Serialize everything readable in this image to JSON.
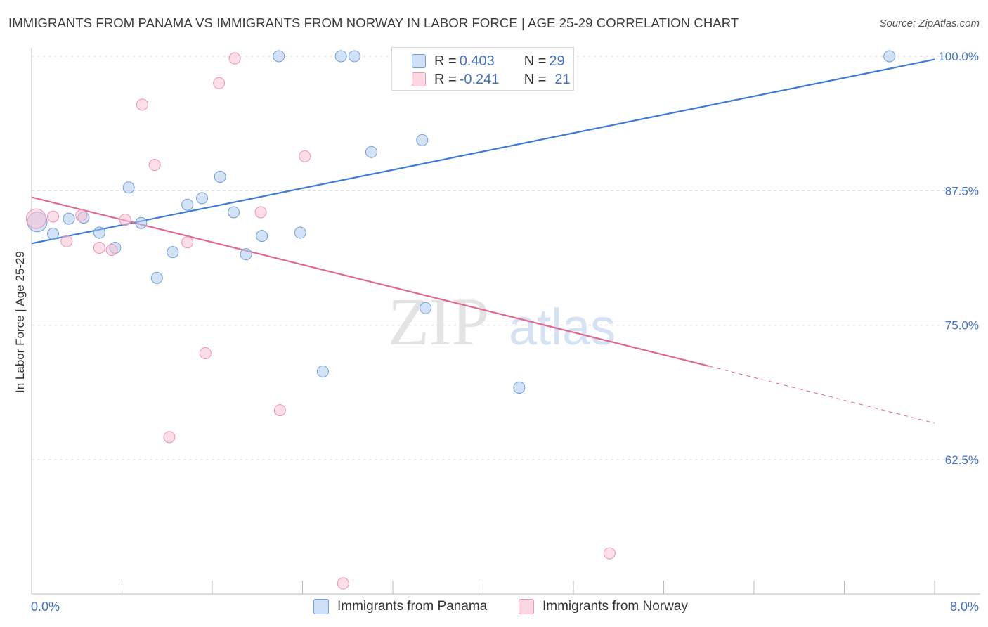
{
  "header": {
    "title": "IMMIGRANTS FROM PANAMA VS IMMIGRANTS FROM NORWAY IN LABOR FORCE | AGE 25-29 CORRELATION CHART",
    "source": "Source: ZipAtlas.com"
  },
  "colors": {
    "panama_fill": "#aecbf0",
    "panama_stroke": "#6f9fd8",
    "panama_line": "#3d7bd4",
    "norway_fill": "#f8c2d4",
    "norway_stroke": "#ee94b3",
    "norway_line": "#e06891",
    "tick_text": "#4472c4",
    "grid": "#d9d9d9"
  },
  "legend_top": {
    "rows": [
      {
        "r_label": "R = ",
        "r_value": "0.403",
        "n_label": "N = ",
        "n_value": "29",
        "swatch": "panama"
      },
      {
        "r_label": "R = ",
        "r_value": "-0.241",
        "n_label": "N = ",
        "n_value": "21",
        "swatch": "norway"
      }
    ]
  },
  "watermark": {
    "zip": "ZIP",
    "atlas": "atlas"
  },
  "chart_data": {
    "type": "scatter",
    "title": "IMMIGRANTS FROM PANAMA VS IMMIGRANTS FROM NORWAY IN LABOR FORCE | AGE 25-29 CORRELATION CHART",
    "xlabel": "",
    "ylabel": "In Labor Force | Age 25-29",
    "xlim": [
      0,
      8
    ],
    "ylim": [
      50,
      102
    ],
    "x_tick_labels": [
      "0.0%",
      "8.0%"
    ],
    "y_ticks": [
      62.5,
      75.0,
      87.5,
      100.0
    ],
    "y_tick_labels": [
      "62.5%",
      "75.0%",
      "87.5%",
      "100.0%"
    ],
    "grid": true,
    "legend_position": "bottom",
    "series": [
      {
        "name": "Immigrants from Panama",
        "R": 0.403,
        "N": 29,
        "trend": {
          "x": [
            0.0,
            8.0
          ],
          "y": [
            82.6,
            99.7
          ]
        },
        "points": [
          {
            "x": 0.05,
            "y": 84.6,
            "big": true
          },
          {
            "x": 0.19,
            "y": 83.5
          },
          {
            "x": 0.33,
            "y": 84.9
          },
          {
            "x": 0.46,
            "y": 85.0
          },
          {
            "x": 0.6,
            "y": 83.6
          },
          {
            "x": 0.74,
            "y": 82.2
          },
          {
            "x": 0.86,
            "y": 87.8
          },
          {
            "x": 0.97,
            "y": 84.5
          },
          {
            "x": 1.11,
            "y": 79.4
          },
          {
            "x": 1.25,
            "y": 81.8
          },
          {
            "x": 1.38,
            "y": 86.2
          },
          {
            "x": 1.51,
            "y": 86.8
          },
          {
            "x": 1.67,
            "y": 88.8
          },
          {
            "x": 1.79,
            "y": 85.5
          },
          {
            "x": 1.9,
            "y": 81.6
          },
          {
            "x": 2.04,
            "y": 83.3
          },
          {
            "x": 2.19,
            "y": 100.0
          },
          {
            "x": 2.38,
            "y": 83.6
          },
          {
            "x": 2.58,
            "y": 70.7
          },
          {
            "x": 2.74,
            "y": 100.0
          },
          {
            "x": 2.86,
            "y": 100.0
          },
          {
            "x": 3.01,
            "y": 91.1
          },
          {
            "x": 3.46,
            "y": 92.2
          },
          {
            "x": 3.49,
            "y": 76.6
          },
          {
            "x": 3.57,
            "y": 100.0
          },
          {
            "x": 4.2,
            "y": 100.0
          },
          {
            "x": 4.35,
            "y": 100.0
          },
          {
            "x": 4.32,
            "y": 69.2
          },
          {
            "x": 7.6,
            "y": 100.0
          }
        ]
      },
      {
        "name": "Immigrants from Norway",
        "R": -0.241,
        "N": 21,
        "trend": {
          "x": [
            0.0,
            6.0
          ],
          "y": [
            86.9,
            71.2
          ]
        },
        "trend_extension": {
          "x": [
            6.0,
            8.0
          ],
          "y": [
            71.2,
            65.9
          ]
        },
        "points": [
          {
            "x": 0.04,
            "y": 84.9,
            "big": true
          },
          {
            "x": 0.19,
            "y": 85.1
          },
          {
            "x": 0.31,
            "y": 82.8
          },
          {
            "x": 0.44,
            "y": 85.2
          },
          {
            "x": 0.6,
            "y": 82.2
          },
          {
            "x": 0.71,
            "y": 82.0
          },
          {
            "x": 0.83,
            "y": 84.8
          },
          {
            "x": 0.98,
            "y": 95.5
          },
          {
            "x": 1.09,
            "y": 89.9
          },
          {
            "x": 1.22,
            "y": 64.6
          },
          {
            "x": 1.38,
            "y": 82.7
          },
          {
            "x": 1.54,
            "y": 72.4
          },
          {
            "x": 1.66,
            "y": 97.5
          },
          {
            "x": 1.8,
            "y": 99.8
          },
          {
            "x": 2.03,
            "y": 85.5
          },
          {
            "x": 2.2,
            "y": 67.1
          },
          {
            "x": 2.42,
            "y": 90.7
          },
          {
            "x": 2.76,
            "y": 51.0
          },
          {
            "x": 3.28,
            "y": 100.0
          },
          {
            "x": 3.69,
            "y": 100.0
          },
          {
            "x": 5.12,
            "y": 53.8
          }
        ]
      }
    ]
  },
  "bottom_legend": [
    {
      "label": "Immigrants from Panama",
      "swatch": "panama"
    },
    {
      "label": "Immigrants from Norway",
      "swatch": "norway"
    }
  ]
}
